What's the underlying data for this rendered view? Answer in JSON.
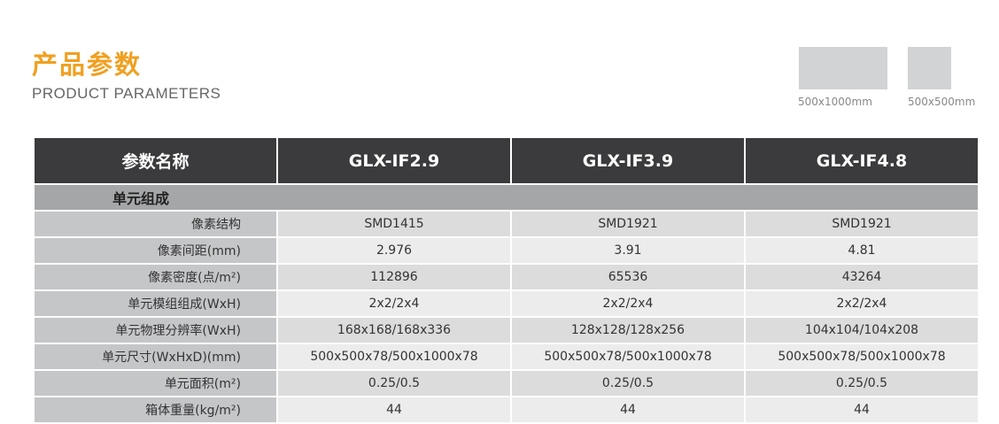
{
  "header": {
    "title": "产品参数",
    "subtitle": "PRODUCT PARAMETERS"
  },
  "swatches": [
    {
      "label": "500x1000mm",
      "color": "#d2d3d4"
    },
    {
      "label": "500x500mm",
      "color": "#d2d3d4"
    }
  ],
  "table": {
    "columns": [
      "参数名称",
      "GLX-IF2.9",
      "GLX-IF3.9",
      "GLX-IF4.8"
    ],
    "section": "单元组成",
    "rows": [
      {
        "label": "像素结构",
        "values": [
          "SMD1415",
          "SMD1921",
          "SMD1921"
        ]
      },
      {
        "label": "像素间距(mm)",
        "values": [
          "2.976",
          "3.91",
          "4.81"
        ]
      },
      {
        "label": "像素密度(点/m²)",
        "values": [
          "112896",
          "65536",
          "43264"
        ]
      },
      {
        "label": "单元模组组成(WxH)",
        "values": [
          "2x2/2x4",
          "2x2/2x4",
          "2x2/2x4"
        ]
      },
      {
        "label": "单元物理分辨率(WxH)",
        "values": [
          "168x168/168x336",
          "128x128/128x256",
          "104x104/104x208"
        ]
      },
      {
        "label": "单元尺寸(WxHxD)(mm)",
        "values": [
          "500x500x78/500x1000x78",
          "500x500x78/500x1000x78",
          "500x500x78/500x1000x78"
        ]
      },
      {
        "label": "单元面积(m²)",
        "values": [
          "0.25/0.5",
          "0.25/0.5",
          "0.25/0.5"
        ]
      },
      {
        "label": "箱体重量(kg/m²)",
        "values": [
          "44",
          "44",
          "44"
        ]
      }
    ]
  },
  "colors": {
    "accent": "#f0a020",
    "header_bg": "#3b3b3d",
    "section_bg": "#a5a6a8"
  }
}
